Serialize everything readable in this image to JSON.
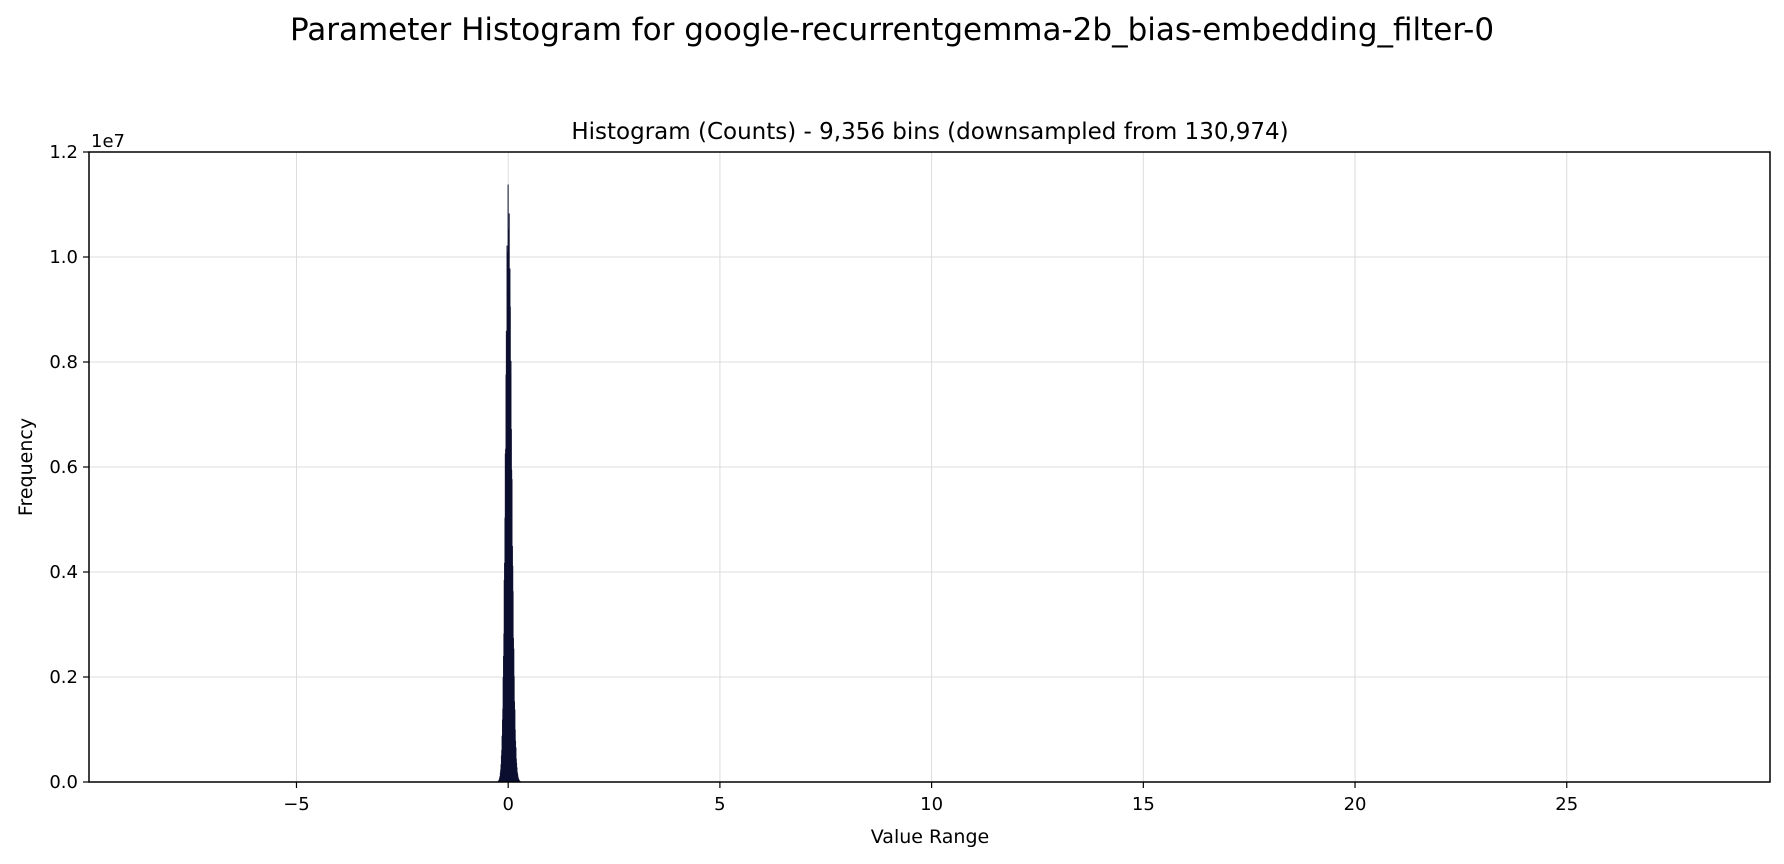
{
  "figure_title": "Parameter Histogram for google-recurrentgemma-2b_bias-embedding_filter-0",
  "chart_data": {
    "type": "bar",
    "title": "Histogram (Counts) - 9,356 bins (downsampled from 130,974)",
    "xlabel": "Value Range",
    "ylabel": "Frequency",
    "y_offset_label": "1e7",
    "xlim": [
      -9.9,
      29.8
    ],
    "ylim": [
      0,
      12000000
    ],
    "x_ticks": [
      -5,
      0,
      5,
      10,
      15,
      20,
      25
    ],
    "x_tick_labels": [
      "−5",
      "0",
      "5",
      "10",
      "15",
      "20",
      "25"
    ],
    "y_ticks": [
      0,
      2000000,
      4000000,
      6000000,
      8000000,
      10000000,
      12000000
    ],
    "y_tick_labels": [
      "0.0",
      "0.2",
      "0.4",
      "0.6",
      "0.8",
      "1.0",
      "1.2"
    ],
    "grid": true,
    "bar_color": "#0d1030",
    "distribution": {
      "center": 0.0,
      "peak_count": 11400000,
      "approx_support": [
        -0.35,
        0.4
      ]
    }
  }
}
